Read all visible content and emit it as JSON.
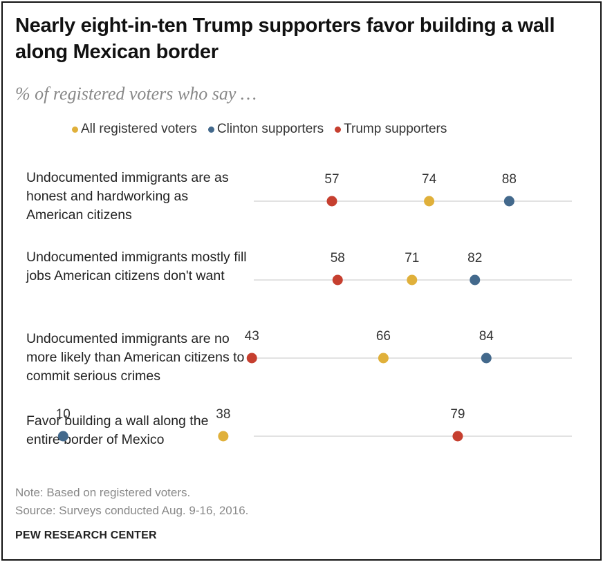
{
  "title": "Nearly eight-in-ten Trump supporters favor building a wall along Mexican border",
  "subtitle": "% of registered voters who say …",
  "colors": {
    "all": "#E0B03A",
    "clinton": "#43698C",
    "trump": "#C63F2F",
    "axis_line": "#D9D9D9"
  },
  "chart_data": {
    "type": "dot",
    "title": "Nearly eight-in-ten Trump supporters favor building a wall along Mexican border",
    "subtitle": "% of registered voters who say …",
    "xlim": [
      0,
      100
    ],
    "legend_position": "top",
    "series": [
      {
        "key": "all",
        "name": "All registered voters"
      },
      {
        "key": "clinton",
        "name": "Clinton supporters"
      },
      {
        "key": "trump",
        "name": "Trump supporters"
      }
    ],
    "categories": [
      {
        "label_lines": [
          "Undocumented immigrants are as",
          "honest and hardworking as",
          "American citizens"
        ],
        "values": {
          "trump": 57,
          "all": 74,
          "clinton": 88
        }
      },
      {
        "label_lines": [
          "Undocumented immigrants mostly fill",
          "jobs American citizens don't want"
        ],
        "values": {
          "trump": 58,
          "all": 71,
          "clinton": 82
        }
      },
      {
        "label_lines": [
          "Undocumented immigrants are no",
          "more likely than American citizens to",
          "commit serious crimes"
        ],
        "values": {
          "trump": 43,
          "all": 66,
          "clinton": 84
        }
      },
      {
        "label_lines": [
          "Favor building a wall along the",
          "entire border  of Mexico"
        ],
        "values": {
          "clinton": 10,
          "all": 38,
          "trump": 79
        }
      }
    ]
  },
  "notes": {
    "note": "Note: Based on registered voters.",
    "source": "Source: Surveys conducted Aug. 9-16, 2016.",
    "org": "PEW RESEARCH CENTER"
  }
}
